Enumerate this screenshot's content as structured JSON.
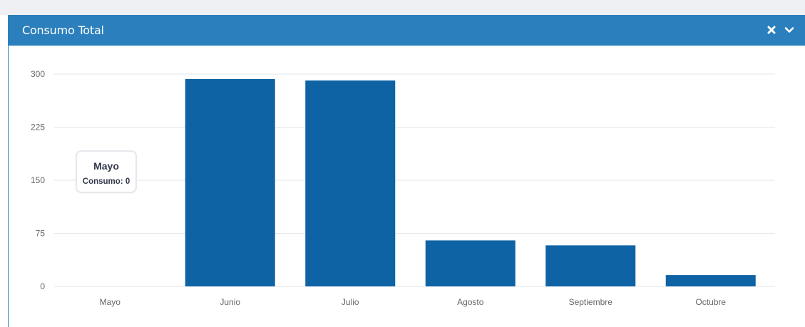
{
  "panel": {
    "title": "Consumo Total",
    "header_color": "#2b7fbc",
    "close_icon": "close-icon",
    "collapse_icon": "chevron-down-icon"
  },
  "tooltip": {
    "title": "Mayo",
    "row": "Consumo: 0"
  },
  "chart_data": {
    "type": "bar",
    "categories": [
      "Mayo",
      "Junio",
      "Julio",
      "Agosto",
      "Septiembre",
      "Octubre"
    ],
    "values": [
      0,
      293,
      291,
      65,
      58,
      16
    ],
    "ylim": [
      0,
      300
    ],
    "yticks": [
      0,
      75,
      150,
      225,
      300
    ],
    "bar_color": "#0e63a5",
    "grid": true,
    "title": "",
    "xlabel": "",
    "ylabel": ""
  }
}
